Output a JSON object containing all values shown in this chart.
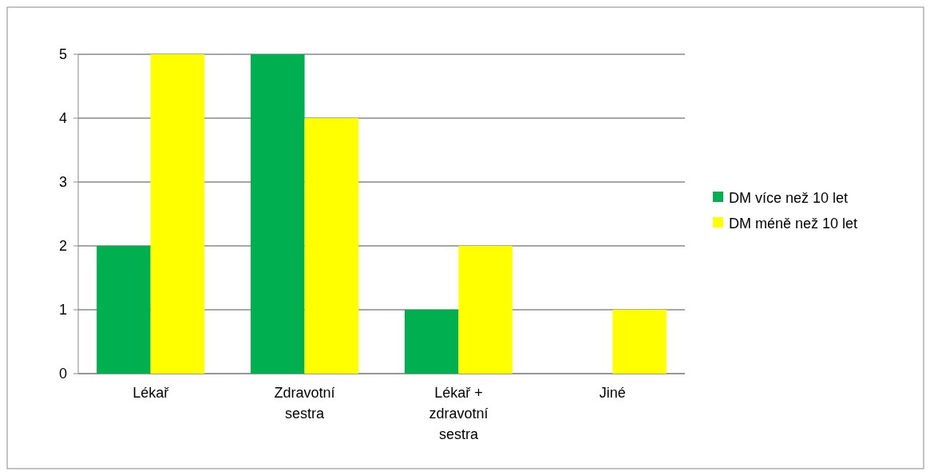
{
  "chart_data": {
    "type": "bar",
    "categories": [
      "Lékař",
      "Zdravotní sestra",
      "Lékař + zdravotní sestra",
      "Jiné"
    ],
    "series": [
      {
        "name": "DM více než 10 let",
        "color": "#00b050",
        "values": [
          2,
          5,
          1,
          0
        ]
      },
      {
        "name": "DM méně než 10 let",
        "color": "#ffff00",
        "values": [
          5,
          4,
          2,
          1
        ]
      }
    ],
    "ylim": [
      0,
      5
    ],
    "yticks": [
      0,
      1,
      2,
      3,
      4,
      5
    ],
    "grid": "y",
    "legend": "right"
  }
}
